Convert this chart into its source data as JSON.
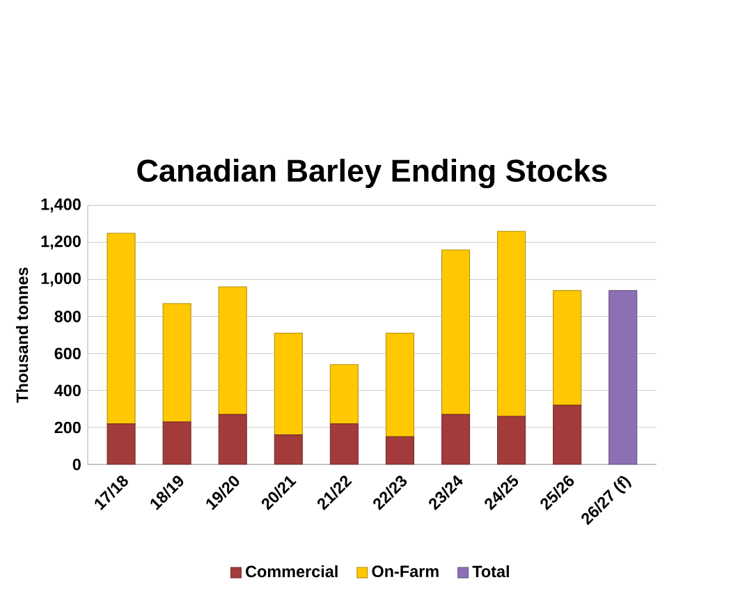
{
  "chart_data": {
    "type": "bar",
    "title": "Canadian Barley Ending Stocks",
    "ylabel": "Thousand tonnes",
    "stacked": true,
    "categories": [
      "17/18",
      "18/19",
      "19/20",
      "20/21",
      "21/22",
      "22/23",
      "23/24",
      "24/25",
      "25/26",
      "26/27 (f)"
    ],
    "series": [
      {
        "name": "Commercial",
        "color": "#a33b3b",
        "values": [
          220,
          230,
          270,
          160,
          220,
          150,
          270,
          260,
          320,
          null
        ]
      },
      {
        "name": "On-Farm",
        "color": "#ffc800",
        "values": [
          1030,
          640,
          690,
          550,
          320,
          560,
          890,
          1000,
          620,
          null
        ]
      },
      {
        "name": "Total",
        "color": "#8c6fb4",
        "values": [
          null,
          null,
          null,
          null,
          null,
          null,
          null,
          null,
          null,
          940
        ]
      }
    ],
    "ylim": [
      0,
      1400
    ],
    "yticks": [
      0,
      200,
      400,
      600,
      800,
      {
        "value": 1000,
        "label": "1,000"
      },
      {
        "value": 1200,
        "label": "1,200"
      },
      {
        "value": 1400,
        "label": "1,400"
      }
    ],
    "grid": "y",
    "legend": "bottom"
  }
}
